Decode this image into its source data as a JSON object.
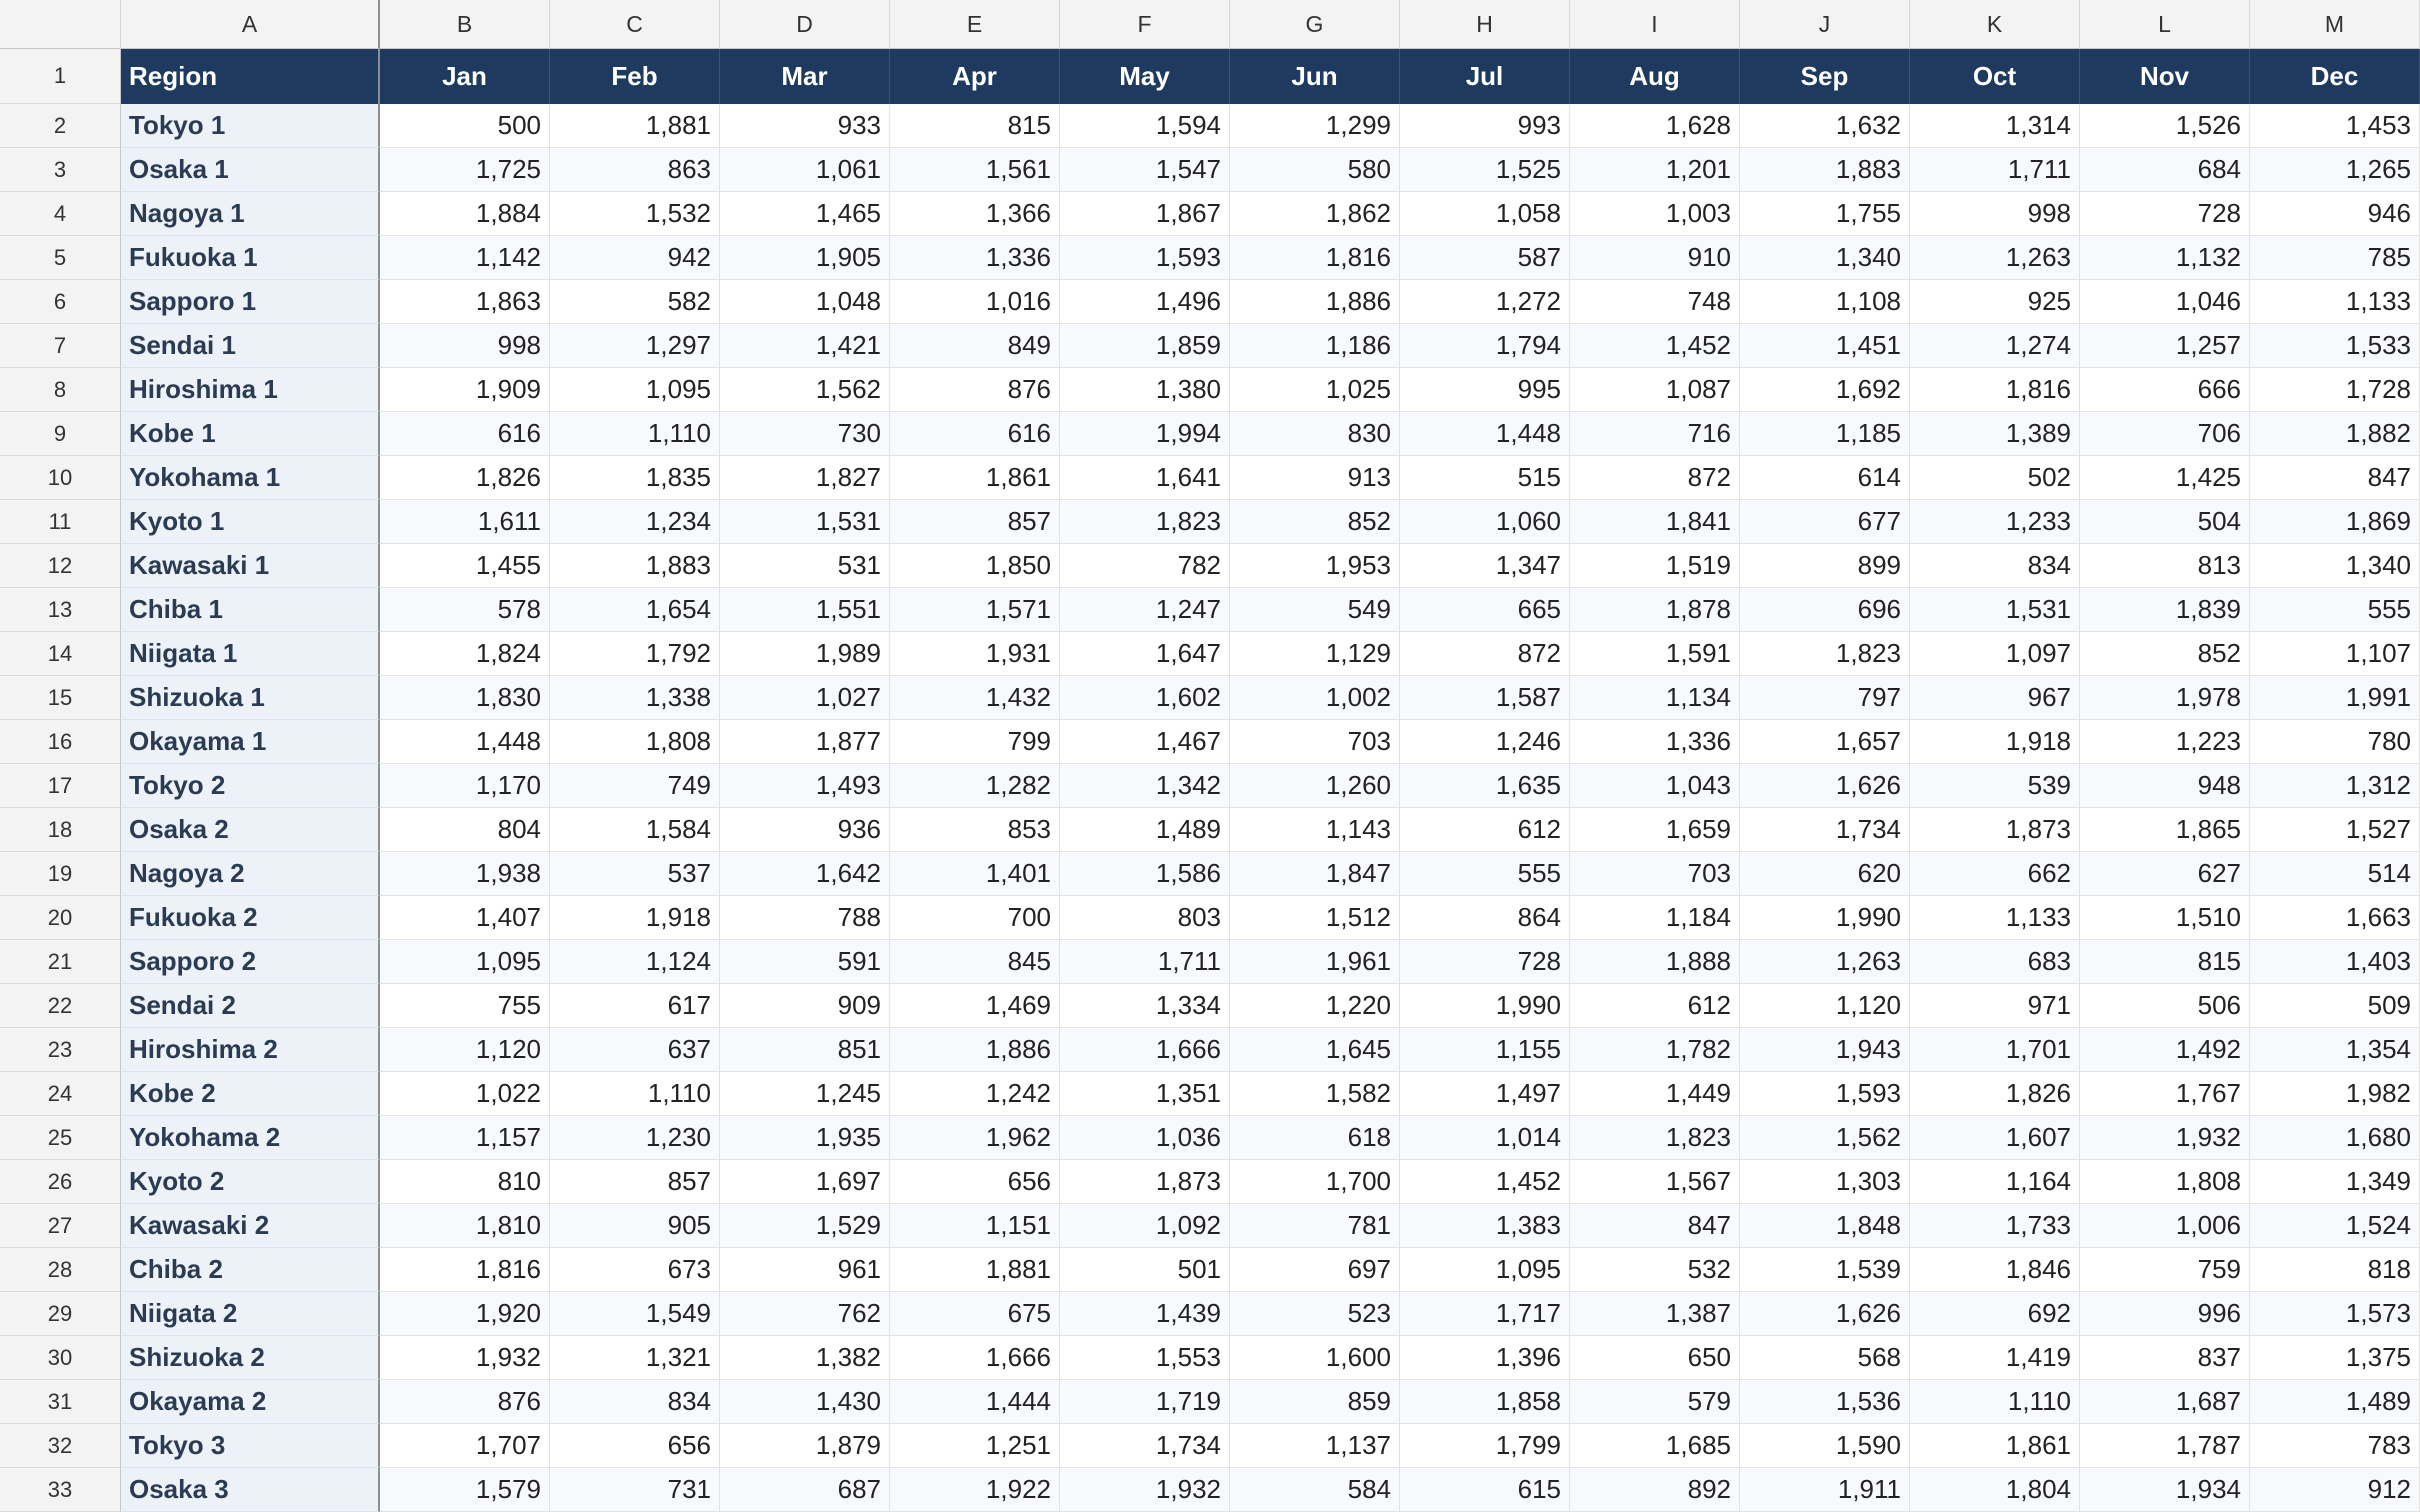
{
  "column_headers": [
    "A",
    "B",
    "C",
    "D",
    "E",
    "F",
    "G",
    "H",
    "I",
    "J",
    "K",
    "L",
    "M"
  ],
  "row_numbers": [
    "1",
    "2",
    "3",
    "4",
    "5",
    "6",
    "7",
    "8",
    "9",
    "10",
    "11",
    "12",
    "13",
    "14",
    "15",
    "16",
    "17",
    "18",
    "19",
    "20",
    "21",
    "22",
    "23",
    "24",
    "25",
    "26",
    "27",
    "28",
    "29",
    "30",
    "31",
    "32",
    "33"
  ],
  "header_row": [
    "Region",
    "Jan",
    "Feb",
    "Mar",
    "Apr",
    "May",
    "Jun",
    "Jul",
    "Aug",
    "Sep",
    "Oct",
    "Nov",
    "Dec"
  ],
  "rows": [
    [
      "Tokyo 1",
      "500",
      "1,881",
      "933",
      "815",
      "1,594",
      "1,299",
      "993",
      "1,628",
      "1,632",
      "1,314",
      "1,526",
      "1,453"
    ],
    [
      "Osaka 1",
      "1,725",
      "863",
      "1,061",
      "1,561",
      "1,547",
      "580",
      "1,525",
      "1,201",
      "1,883",
      "1,711",
      "684",
      "1,265"
    ],
    [
      "Nagoya 1",
      "1,884",
      "1,532",
      "1,465",
      "1,366",
      "1,867",
      "1,862",
      "1,058",
      "1,003",
      "1,755",
      "998",
      "728",
      "946"
    ],
    [
      "Fukuoka 1",
      "1,142",
      "942",
      "1,905",
      "1,336",
      "1,593",
      "1,816",
      "587",
      "910",
      "1,340",
      "1,263",
      "1,132",
      "785"
    ],
    [
      "Sapporo 1",
      "1,863",
      "582",
      "1,048",
      "1,016",
      "1,496",
      "1,886",
      "1,272",
      "748",
      "1,108",
      "925",
      "1,046",
      "1,133"
    ],
    [
      "Sendai 1",
      "998",
      "1,297",
      "1,421",
      "849",
      "1,859",
      "1,186",
      "1,794",
      "1,452",
      "1,451",
      "1,274",
      "1,257",
      "1,533"
    ],
    [
      "Hiroshima 1",
      "1,909",
      "1,095",
      "1,562",
      "876",
      "1,380",
      "1,025",
      "995",
      "1,087",
      "1,692",
      "1,816",
      "666",
      "1,728"
    ],
    [
      "Kobe 1",
      "616",
      "1,110",
      "730",
      "616",
      "1,994",
      "830",
      "1,448",
      "716",
      "1,185",
      "1,389",
      "706",
      "1,882"
    ],
    [
      "Yokohama 1",
      "1,826",
      "1,835",
      "1,827",
      "1,861",
      "1,641",
      "913",
      "515",
      "872",
      "614",
      "502",
      "1,425",
      "847"
    ],
    [
      "Kyoto 1",
      "1,611",
      "1,234",
      "1,531",
      "857",
      "1,823",
      "852",
      "1,060",
      "1,841",
      "677",
      "1,233",
      "504",
      "1,869"
    ],
    [
      "Kawasaki 1",
      "1,455",
      "1,883",
      "531",
      "1,850",
      "782",
      "1,953",
      "1,347",
      "1,519",
      "899",
      "834",
      "813",
      "1,340"
    ],
    [
      "Chiba 1",
      "578",
      "1,654",
      "1,551",
      "1,571",
      "1,247",
      "549",
      "665",
      "1,878",
      "696",
      "1,531",
      "1,839",
      "555"
    ],
    [
      "Niigata 1",
      "1,824",
      "1,792",
      "1,989",
      "1,931",
      "1,647",
      "1,129",
      "872",
      "1,591",
      "1,823",
      "1,097",
      "852",
      "1,107"
    ],
    [
      "Shizuoka 1",
      "1,830",
      "1,338",
      "1,027",
      "1,432",
      "1,602",
      "1,002",
      "1,587",
      "1,134",
      "797",
      "967",
      "1,978",
      "1,991"
    ],
    [
      "Okayama 1",
      "1,448",
      "1,808",
      "1,877",
      "799",
      "1,467",
      "703",
      "1,246",
      "1,336",
      "1,657",
      "1,918",
      "1,223",
      "780"
    ],
    [
      "Tokyo 2",
      "1,170",
      "749",
      "1,493",
      "1,282",
      "1,342",
      "1,260",
      "1,635",
      "1,043",
      "1,626",
      "539",
      "948",
      "1,312"
    ],
    [
      "Osaka 2",
      "804",
      "1,584",
      "936",
      "853",
      "1,489",
      "1,143",
      "612",
      "1,659",
      "1,734",
      "1,873",
      "1,865",
      "1,527"
    ],
    [
      "Nagoya 2",
      "1,938",
      "537",
      "1,642",
      "1,401",
      "1,586",
      "1,847",
      "555",
      "703",
      "620",
      "662",
      "627",
      "514"
    ],
    [
      "Fukuoka 2",
      "1,407",
      "1,918",
      "788",
      "700",
      "803",
      "1,512",
      "864",
      "1,184",
      "1,990",
      "1,133",
      "1,510",
      "1,663"
    ],
    [
      "Sapporo 2",
      "1,095",
      "1,124",
      "591",
      "845",
      "1,711",
      "1,961",
      "728",
      "1,888",
      "1,263",
      "683",
      "815",
      "1,403"
    ],
    [
      "Sendai 2",
      "755",
      "617",
      "909",
      "1,469",
      "1,334",
      "1,220",
      "1,990",
      "612",
      "1,120",
      "971",
      "506",
      "509"
    ],
    [
      "Hiroshima 2",
      "1,120",
      "637",
      "851",
      "1,886",
      "1,666",
      "1,645",
      "1,155",
      "1,782",
      "1,943",
      "1,701",
      "1,492",
      "1,354"
    ],
    [
      "Kobe 2",
      "1,022",
      "1,110",
      "1,245",
      "1,242",
      "1,351",
      "1,582",
      "1,497",
      "1,449",
      "1,593",
      "1,826",
      "1,767",
      "1,982"
    ],
    [
      "Yokohama 2",
      "1,157",
      "1,230",
      "1,935",
      "1,962",
      "1,036",
      "618",
      "1,014",
      "1,823",
      "1,562",
      "1,607",
      "1,932",
      "1,680"
    ],
    [
      "Kyoto 2",
      "810",
      "857",
      "1,697",
      "656",
      "1,873",
      "1,700",
      "1,452",
      "1,567",
      "1,303",
      "1,164",
      "1,808",
      "1,349"
    ],
    [
      "Kawasaki 2",
      "1,810",
      "905",
      "1,529",
      "1,151",
      "1,092",
      "781",
      "1,383",
      "847",
      "1,848",
      "1,733",
      "1,006",
      "1,524"
    ],
    [
      "Chiba 2",
      "1,816",
      "673",
      "961",
      "1,881",
      "501",
      "697",
      "1,095",
      "532",
      "1,539",
      "1,846",
      "759",
      "818"
    ],
    [
      "Niigata 2",
      "1,920",
      "1,549",
      "762",
      "675",
      "1,439",
      "523",
      "1,717",
      "1,387",
      "1,626",
      "692",
      "996",
      "1,573"
    ],
    [
      "Shizuoka 2",
      "1,932",
      "1,321",
      "1,382",
      "1,666",
      "1,553",
      "1,600",
      "1,396",
      "650",
      "568",
      "1,419",
      "837",
      "1,375"
    ],
    [
      "Okayama 2",
      "876",
      "834",
      "1,430",
      "1,444",
      "1,719",
      "859",
      "1,858",
      "579",
      "1,536",
      "1,110",
      "1,687",
      "1,489"
    ],
    [
      "Tokyo 3",
      "1,707",
      "656",
      "1,879",
      "1,251",
      "1,734",
      "1,137",
      "1,799",
      "1,685",
      "1,590",
      "1,861",
      "1,787",
      "783"
    ],
    [
      "Osaka 3",
      "1,579",
      "731",
      "687",
      "1,922",
      "1,932",
      "584",
      "615",
      "892",
      "1,911",
      "1,804",
      "1,934",
      "912"
    ]
  ]
}
